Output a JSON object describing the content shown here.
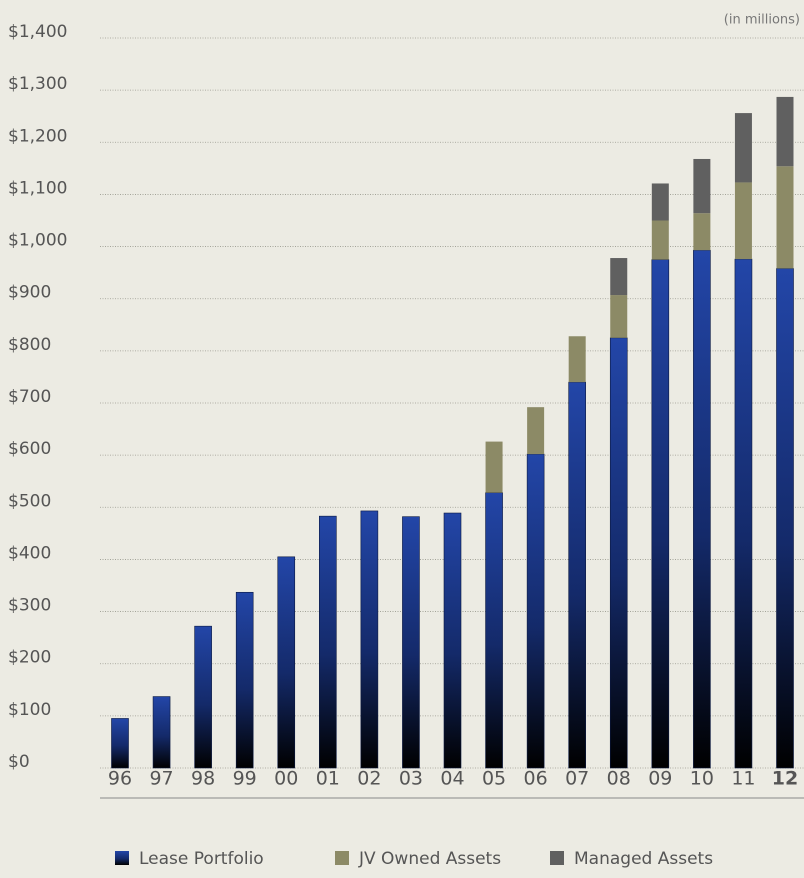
{
  "chart_data": {
    "type": "stacked_bar",
    "annotation": "(in millions)",
    "categories": [
      "96",
      "97",
      "98",
      "99",
      "00",
      "01",
      "02",
      "03",
      "04",
      "05",
      "06",
      "07",
      "08",
      "09",
      "10",
      "11",
      "12"
    ],
    "highlight_category": "12",
    "series": [
      {
        "name": "Lease Portfolio",
        "color": "#1f3f9c",
        "values": [
          95,
          137,
          272,
          337,
          405,
          483,
          493,
          482,
          489,
          528,
          602,
          740,
          825,
          975,
          993,
          976,
          958
        ]
      },
      {
        "name": "JV Owned Assets",
        "color": "#8c8a66",
        "values": [
          null,
          null,
          null,
          null,
          null,
          null,
          null,
          null,
          null,
          98,
          90,
          88,
          82,
          75,
          71,
          147,
          196
        ]
      },
      {
        "name": "Managed Assets",
        "color": "#606060",
        "values": [
          null,
          null,
          null,
          null,
          null,
          null,
          null,
          null,
          null,
          null,
          null,
          null,
          71,
          71,
          104,
          133,
          133
        ]
      }
    ],
    "ylim": [
      0,
      1400
    ],
    "yticks": [
      {
        "value": 0,
        "label": "$0"
      },
      {
        "value": 100,
        "label": "$100"
      },
      {
        "value": 200,
        "label": "$200"
      },
      {
        "value": 300,
        "label": "$300"
      },
      {
        "value": 400,
        "label": "$400"
      },
      {
        "value": 500,
        "label": "$500"
      },
      {
        "value": 600,
        "label": "$600"
      },
      {
        "value": 700,
        "label": "$700"
      },
      {
        "value": 800,
        "label": "$800"
      },
      {
        "value": 900,
        "label": "$900"
      },
      {
        "value": 1000,
        "label": "$1,000"
      },
      {
        "value": 1100,
        "label": "$1,100"
      },
      {
        "value": 1200,
        "label": "$1,200"
      },
      {
        "value": 1300,
        "label": "$1,300"
      },
      {
        "value": 1400,
        "label": "$1,400"
      }
    ],
    "grid": true,
    "legend": "bottom"
  }
}
